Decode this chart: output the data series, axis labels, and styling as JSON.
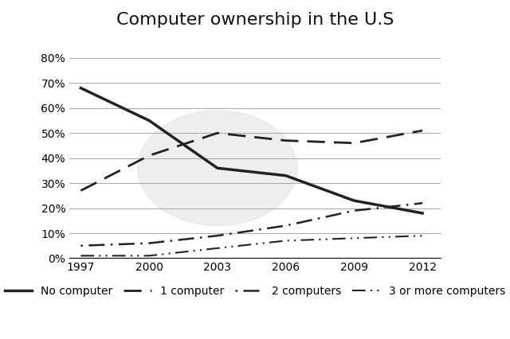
{
  "title": "Computer ownership in the U.S",
  "years": [
    1997,
    2000,
    2003,
    2006,
    2009,
    2012
  ],
  "series": {
    "No computer": {
      "values": [
        0.68,
        0.55,
        0.36,
        0.33,
        0.23,
        0.18
      ],
      "linewidth": 2.5,
      "color": "#222222",
      "dash_pattern": null
    },
    "1 computer": {
      "values": [
        0.27,
        0.41,
        0.5,
        0.47,
        0.46,
        0.51
      ],
      "linewidth": 2.0,
      "color": "#222222",
      "dash_pattern": [
        8,
        4
      ]
    },
    "2 computers": {
      "values": [
        0.05,
        0.06,
        0.09,
        0.13,
        0.19,
        0.22
      ],
      "linewidth": 1.8,
      "color": "#222222",
      "dash_pattern": [
        1,
        3,
        8,
        3
      ]
    },
    "3 or more computers": {
      "values": [
        0.01,
        0.01,
        0.04,
        0.07,
        0.08,
        0.09
      ],
      "linewidth": 1.5,
      "color": "#222222",
      "dash_pattern": [
        8,
        3,
        1,
        3,
        1,
        3
      ]
    }
  },
  "ylim": [
    0,
    0.88
  ],
  "yticks": [
    0.0,
    0.1,
    0.2,
    0.3,
    0.4,
    0.5,
    0.6,
    0.7,
    0.8
  ],
  "ytick_labels": [
    "0%",
    "10%",
    "20%",
    "30%",
    "40%",
    "50%",
    "60%",
    "70%",
    "80%"
  ],
  "xticks": [
    1997,
    2000,
    2003,
    2006,
    2009,
    2012
  ],
  "background_color": "#ffffff",
  "grid_color": "#aaaaaa",
  "title_fontsize": 16,
  "tick_fontsize": 10,
  "legend_fontsize": 10
}
